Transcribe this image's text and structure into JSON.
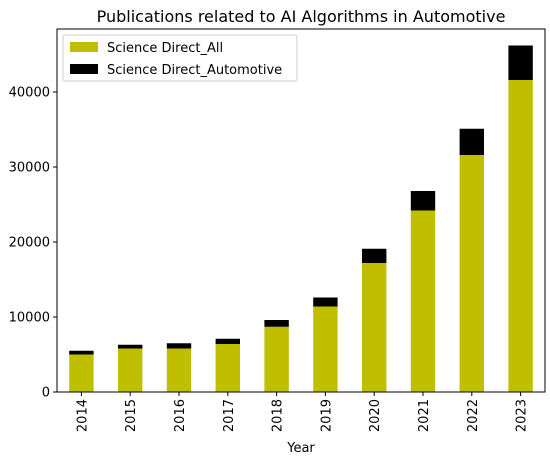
{
  "chart_data": {
    "type": "bar",
    "stacked": true,
    "title": "Publications related to AI Algorithms in Automotive",
    "xlabel": "Year",
    "ylabel": "",
    "categories": [
      "2014",
      "2015",
      "2016",
      "2017",
      "2018",
      "2019",
      "2020",
      "2021",
      "2022",
      "2023"
    ],
    "series": [
      {
        "name": "Science Direct_All",
        "color": "#bfbf00",
        "values": [
          5000,
          5800,
          5800,
          6400,
          8700,
          11400,
          17200,
          24200,
          31600,
          41600
        ]
      },
      {
        "name": "Science Direct_Automotive",
        "color": "#000000",
        "values": [
          500,
          500,
          700,
          700,
          900,
          1200,
          1900,
          2600,
          3500,
          4600
        ]
      }
    ],
    "ylim": [
      0,
      48400
    ],
    "yticks": [
      0,
      10000,
      20000,
      30000,
      40000
    ],
    "grid": false,
    "legend_position": "top-left"
  }
}
